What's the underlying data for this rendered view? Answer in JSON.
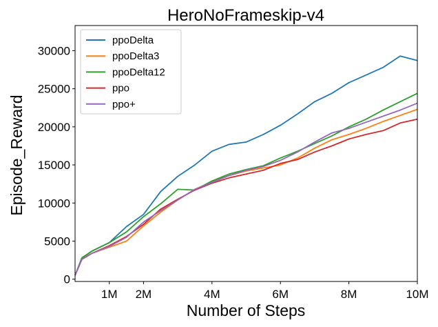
{
  "chart_data": {
    "type": "line",
    "title": "HeroNoFrameskip-v4",
    "xlabel": "Number of Steps",
    "ylabel": "Episode_Reward",
    "xlim": [
      0,
      10000000
    ],
    "ylim": [
      -300,
      33300
    ],
    "x_ticks": [
      {
        "value": 1000000,
        "label": "1M"
      },
      {
        "value": 2000000,
        "label": "2M"
      },
      {
        "value": 4000000,
        "label": "4M"
      },
      {
        "value": 6000000,
        "label": "6M"
      },
      {
        "value": 8000000,
        "label": "8M"
      },
      {
        "value": 10000000,
        "label": "10M"
      }
    ],
    "y_ticks": [
      {
        "value": 0,
        "label": "0"
      },
      {
        "value": 5000,
        "label": "5000"
      },
      {
        "value": 10000,
        "label": "10000"
      },
      {
        "value": 15000,
        "label": "15000"
      },
      {
        "value": 20000,
        "label": "20000"
      },
      {
        "value": 25000,
        "label": "25000"
      },
      {
        "value": 30000,
        "label": "30000"
      }
    ],
    "grid": false,
    "legend_position": "top-left",
    "x": [
      0,
      200000,
      500000,
      1000000,
      1500000,
      2000000,
      2500000,
      3000000,
      3500000,
      4000000,
      4500000,
      5000000,
      5500000,
      6000000,
      6500000,
      7000000,
      7500000,
      8000000,
      8500000,
      9000000,
      9500000,
      10000000
    ],
    "series": [
      {
        "name": "ppoDelta",
        "color": "#1f77b4",
        "values": [
          500,
          2800,
          3700,
          4800,
          6900,
          8500,
          11500,
          13500,
          15000,
          16800,
          17700,
          18000,
          19000,
          20200,
          21700,
          23300,
          24400,
          25800,
          26800,
          27800,
          29300,
          28700
        ]
      },
      {
        "name": "ppoDelta3",
        "color": "#ff7f0e",
        "values": [
          500,
          2700,
          3400,
          4200,
          5000,
          7000,
          8800,
          10400,
          11800,
          12800,
          13600,
          14200,
          14600,
          15000,
          15900,
          17200,
          18300,
          19000,
          19800,
          20700,
          21500,
          22300
        ]
      },
      {
        "name": "ppoDelta12",
        "color": "#2ca02c",
        "values": [
          500,
          2800,
          3700,
          4800,
          6200,
          8200,
          9900,
          11800,
          11700,
          12900,
          13800,
          14400,
          14900,
          15900,
          16800,
          17800,
          18800,
          20000,
          21000,
          22200,
          23300,
          24400
        ]
      },
      {
        "name": "ppo",
        "color": "#d62728",
        "values": [
          500,
          2600,
          3400,
          4400,
          5600,
          7200,
          9200,
          10500,
          11700,
          12600,
          13300,
          13800,
          14300,
          15200,
          15700,
          16700,
          17500,
          18400,
          19000,
          19500,
          20500,
          21000
        ]
      },
      {
        "name": "ppo+",
        "color": "#9467bd",
        "values": [
          500,
          2600,
          3400,
          4300,
          5500,
          7500,
          9000,
          10400,
          11800,
          12700,
          13600,
          14300,
          14800,
          15600,
          16700,
          18000,
          19200,
          19800,
          20600,
          21400,
          22200,
          23100
        ]
      }
    ]
  }
}
